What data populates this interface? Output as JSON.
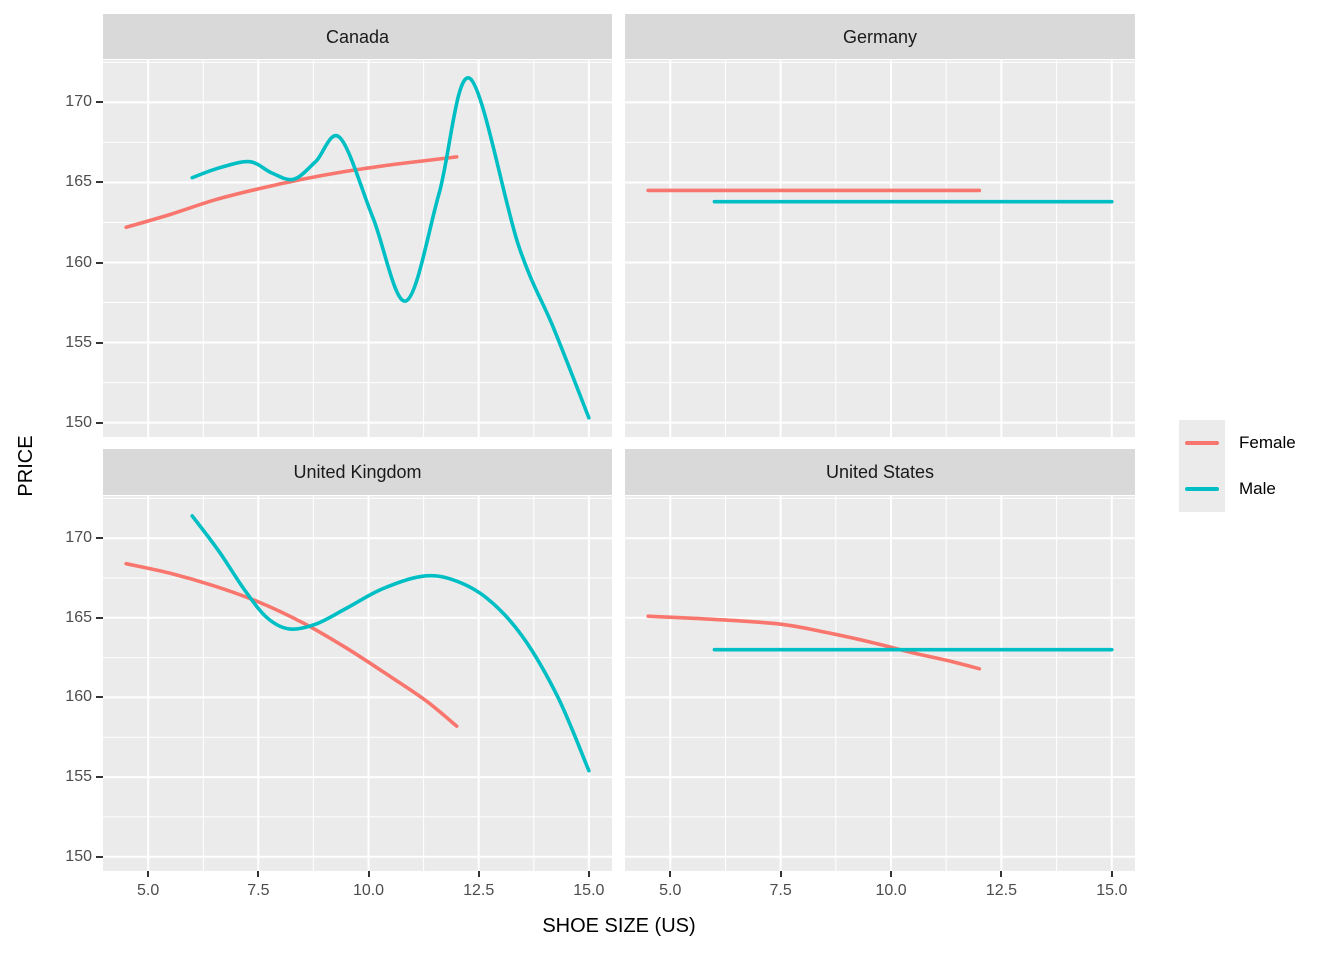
{
  "chart_data": {
    "type": "line",
    "title": "",
    "xlabel": "SHOE SIZE (US)",
    "ylabel": "PRICE",
    "xlim": [
      3.975,
      15.525
    ],
    "ylim": [
      149.1,
      172.65
    ],
    "x_ticks": [
      5.0,
      7.5,
      10.0,
      12.5,
      15.0
    ],
    "x_tick_labels": [
      "5.0",
      "7.5",
      "10.0",
      "12.5",
      "15.0"
    ],
    "y_ticks": [
      170,
      165,
      160,
      155,
      150
    ],
    "y_tick_labels": [
      "170",
      "165",
      "160",
      "155",
      "150"
    ],
    "x_minor": [
      6.25,
      8.75,
      11.25,
      13.75
    ],
    "y_minor": [
      172.5,
      167.5,
      162.5,
      157.5,
      152.5
    ],
    "grid": true,
    "legend_position": "right",
    "colors": {
      "female": "#F8766D",
      "male": "#00BFC4",
      "panel_bg": "#EBEBEB",
      "strip_bg": "#D9D9D9",
      "gridline": "#FFFFFF",
      "axis_text": "#4D4D4D",
      "tick_mark": "#333333"
    },
    "legend": {
      "entries": [
        {
          "label": "Female",
          "color": "#F8766D"
        },
        {
          "label": "Male",
          "color": "#00BFC4"
        }
      ]
    },
    "facets": [
      {
        "name": "Canada",
        "series": [
          {
            "name": "Female",
            "color": "#F8766D",
            "points": [
              [
                4.5,
                162.2
              ],
              [
                5.5,
                163.0
              ],
              [
                6.5,
                163.9
              ],
              [
                7.5,
                164.6
              ],
              [
                8.5,
                165.2
              ],
              [
                9.5,
                165.7
              ],
              [
                10.5,
                166.1
              ],
              [
                11.25,
                166.35
              ],
              [
                12,
                166.6
              ]
            ]
          },
          {
            "name": "Male",
            "color": "#00BFC4",
            "points": [
              [
                6,
                165.3
              ],
              [
                6.6,
                165.9
              ],
              [
                7.3,
                166.3
              ],
              [
                7.8,
                165.6
              ],
              [
                8.3,
                165.2
              ],
              [
                8.8,
                166.3
              ],
              [
                9.35,
                167.8
              ],
              [
                10.1,
                162.8
              ],
              [
                10.85,
                157.6
              ],
              [
                11.6,
                164.3
              ],
              [
                12.3,
                171.5
              ],
              [
                13.4,
                161.1
              ],
              [
                14.2,
                155.9
              ],
              [
                15,
                150.3
              ]
            ]
          }
        ]
      },
      {
        "name": "Germany",
        "series": [
          {
            "name": "Female",
            "color": "#F8766D",
            "points": [
              [
                4.5,
                164.5
              ],
              [
                12,
                164.5
              ]
            ]
          },
          {
            "name": "Male",
            "color": "#00BFC4",
            "points": [
              [
                6,
                163.8
              ],
              [
                15,
                163.8
              ]
            ]
          }
        ]
      },
      {
        "name": "United Kingdom",
        "series": [
          {
            "name": "Female",
            "color": "#F8766D",
            "points": [
              [
                4.5,
                168.4
              ],
              [
                5.5,
                167.8
              ],
              [
                6.5,
                167.0
              ],
              [
                7.5,
                166.0
              ],
              [
                8.5,
                164.7
              ],
              [
                9.5,
                163.1
              ],
              [
                10.5,
                161.3
              ],
              [
                11.3,
                159.8
              ],
              [
                12,
                158.2
              ]
            ]
          },
          {
            "name": "Male",
            "color": "#00BFC4",
            "points": [
              [
                6,
                171.4
              ],
              [
                6.6,
                169.2
              ],
              [
                7.2,
                166.7
              ],
              [
                7.7,
                165.0
              ],
              [
                8.2,
                164.3
              ],
              [
                8.8,
                164.6
              ],
              [
                9.5,
                165.6
              ],
              [
                10.3,
                166.8
              ],
              [
                11.2,
                167.6
              ],
              [
                11.9,
                167.4
              ],
              [
                12.7,
                166.2
              ],
              [
                13.5,
                163.8
              ],
              [
                14.3,
                160.0
              ],
              [
                15,
                155.4
              ]
            ]
          }
        ]
      },
      {
        "name": "United States",
        "series": [
          {
            "name": "Female",
            "color": "#F8766D",
            "points": [
              [
                4.5,
                165.1
              ],
              [
                6,
                164.9
              ],
              [
                7.5,
                164.6
              ],
              [
                8.5,
                164.1
              ],
              [
                9.5,
                163.5
              ],
              [
                10.5,
                162.8
              ],
              [
                11.3,
                162.3
              ],
              [
                12,
                161.8
              ]
            ]
          },
          {
            "name": "Male",
            "color": "#00BFC4",
            "points": [
              [
                6,
                163.0
              ],
              [
                15,
                163.0
              ]
            ]
          }
        ]
      }
    ]
  }
}
